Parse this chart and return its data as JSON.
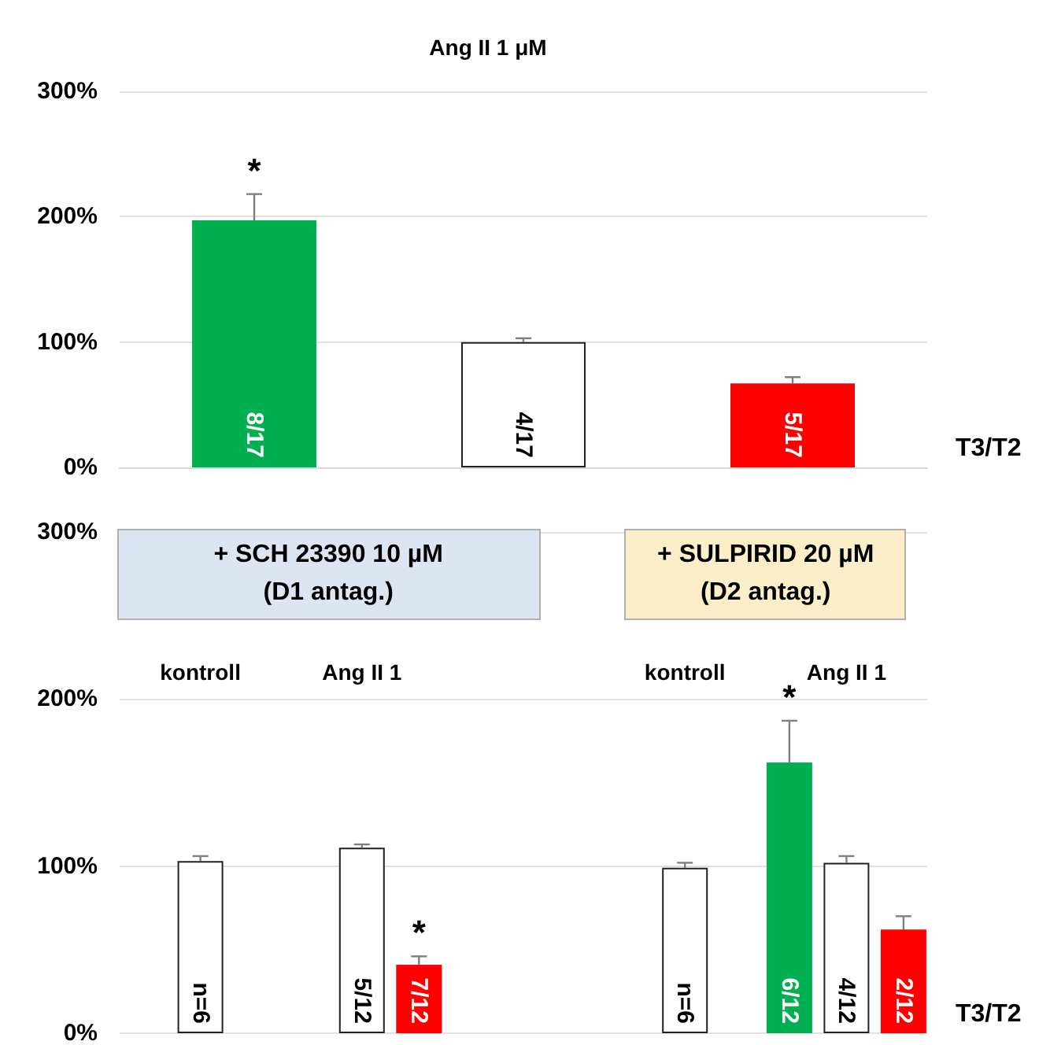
{
  "chart_data": [
    {
      "type": "bar",
      "title": "Ang II 1 μM",
      "xlabel": "T3/T2",
      "categories": [
        null,
        null,
        null
      ],
      "values": [
        197,
        100,
        67
      ],
      "colors": [
        "#00b050",
        "#ffffff",
        "#ff0000"
      ],
      "errors": [
        21,
        3,
        5
      ],
      "annotations": [
        "8/17",
        "4/17",
        "5/17",
        {
          "text": "*",
          "y": 197
        }
      ],
      "ylim": [
        0,
        300
      ],
      "yticks": [
        {
          "value": 0,
          "label": "0%"
        },
        {
          "value": 100,
          "label": "100%"
        },
        {
          "value": 200,
          "label": "200%"
        },
        {
          "value": 300,
          "label": "300%"
        }
      ],
      "grid": "y"
    },
    {
      "type": "bar",
      "xlabel": "T3/T2",
      "categories": [
        "kontroll",
        "Ang II 1",
        null,
        "kontroll",
        "Ang II 1"
      ],
      "series": [
        {
          "color": "#00b050",
          "values": [
            null,
            null,
            null,
            null,
            162
          ],
          "errors": [
            null,
            null,
            null,
            null,
            25
          ]
        },
        {
          "color": "#ffffff",
          "values": [
            103,
            111,
            null,
            99,
            102
          ],
          "errors": [
            3,
            2,
            null,
            3,
            4
          ]
        },
        {
          "color": "#ff0000",
          "values": [
            null,
            41,
            null,
            null,
            62
          ],
          "errors": [
            null,
            5,
            null,
            null,
            8
          ]
        }
      ],
      "annotations": [
        "+ SCH 23390 10 µM\n(D1 antag.)",
        "+ SULPIRID 20 µM\n(D2 antag.)",
        "n=6",
        "5/12",
        "7/12",
        "n=6",
        "6/12",
        "4/12",
        "2/12",
        {
          "text": "*",
          "y": 41
        },
        {
          "text": "*",
          "y": 162
        }
      ],
      "ylim": [
        0,
        300
      ],
      "yticks": [
        {
          "value": 0,
          "label": "0%"
        },
        {
          "value": 100,
          "label": "100%"
        },
        {
          "value": 200,
          "label": "200%"
        },
        {
          "value": 300,
          "label": "300%"
        }
      ],
      "grid": "y"
    }
  ]
}
